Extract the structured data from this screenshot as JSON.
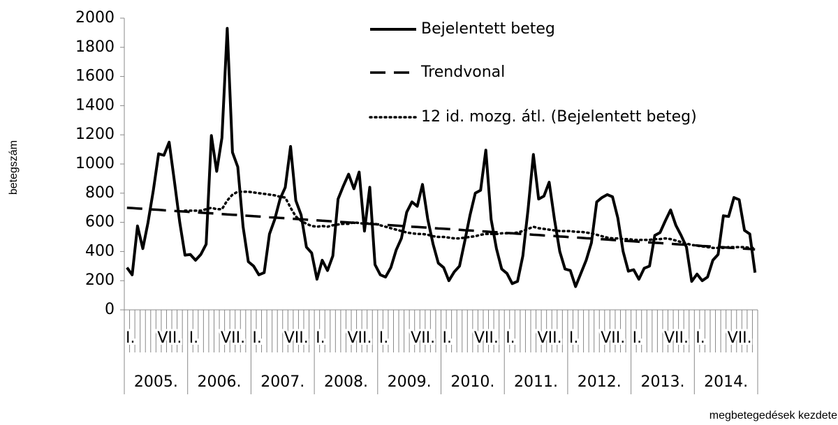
{
  "chart_data": {
    "type": "line",
    "y_label": "betegszám",
    "x_label": "megbetegedések kezdete",
    "categories": [
      "I.",
      null,
      null,
      null,
      null,
      null,
      "VII.",
      null,
      null,
      null,
      null,
      null,
      "I.",
      null,
      null,
      null,
      null,
      null,
      "VII.",
      null,
      null,
      null,
      null,
      null,
      "I.",
      null,
      null,
      null,
      null,
      null,
      "VII.",
      null,
      null,
      null,
      null,
      null,
      "I.",
      null,
      null,
      null,
      null,
      null,
      "VII.",
      null,
      null,
      null,
      null,
      null,
      "I.",
      null,
      null,
      null,
      null,
      null,
      "VII.",
      null,
      null,
      null,
      null,
      null,
      "I.",
      null,
      null,
      null,
      null,
      null,
      "VII.",
      null,
      null,
      null,
      null,
      null,
      "I.",
      null,
      null,
      null,
      null,
      null,
      "VII.",
      null,
      null,
      null,
      null,
      null,
      "I.",
      null,
      null,
      null,
      null,
      null,
      "VII.",
      null,
      null,
      null,
      null,
      null,
      "I.",
      null,
      null,
      null,
      null,
      null,
      "VII.",
      null,
      null,
      null,
      null,
      null,
      "I.",
      null,
      null,
      null,
      null,
      null,
      "VII.",
      null,
      null,
      null,
      null,
      null
    ],
    "years": [
      "2005.",
      "2006.",
      "2007.",
      "2008.",
      "2009.",
      "2010.",
      "2011.",
      "2012.",
      "2013.",
      "2014."
    ],
    "ylim": [
      0,
      2000
    ],
    "yticks": [
      0,
      200,
      400,
      600,
      800,
      1000,
      1200,
      1400,
      1600,
      1800,
      2000
    ],
    "series": [
      {
        "name": "Bejelentett beteg",
        "color": "#000000",
        "style": "solid",
        "values": [
          290,
          240,
          575,
          420,
          600,
          820,
          1070,
          1060,
          1150,
          880,
          600,
          375,
          380,
          340,
          380,
          450,
          1195,
          950,
          1180,
          1930,
          1080,
          980,
          570,
          330,
          300,
          240,
          255,
          520,
          620,
          760,
          840,
          1120,
          750,
          650,
          430,
          390,
          210,
          340,
          270,
          370,
          760,
          850,
          930,
          830,
          945,
          540,
          840,
          310,
          240,
          225,
          290,
          410,
          490,
          670,
          740,
          710,
          860,
          620,
          450,
          320,
          290,
          200,
          260,
          300,
          470,
          650,
          800,
          820,
          1095,
          620,
          420,
          280,
          250,
          180,
          195,
          370,
          690,
          1065,
          760,
          780,
          875,
          620,
          400,
          280,
          270,
          160,
          250,
          340,
          460,
          740,
          770,
          790,
          775,
          630,
          400,
          265,
          275,
          210,
          285,
          300,
          510,
          530,
          610,
          685,
          580,
          510,
          430,
          195,
          245,
          200,
          225,
          340,
          380,
          645,
          640,
          770,
          755,
          545,
          520,
          255
        ]
      },
      {
        "name": "Trendvonal",
        "color": "#000000",
        "style": "dashed",
        "values": [
          700,
          698,
          695,
          693,
          690,
          688,
          686,
          683,
          681,
          678,
          676,
          674,
          671,
          669,
          666,
          664,
          662,
          659,
          657,
          654,
          652,
          650,
          647,
          645,
          642,
          640,
          638,
          635,
          633,
          630,
          628,
          626,
          623,
          621,
          618,
          616,
          614,
          611,
          609,
          606,
          604,
          602,
          599,
          597,
          594,
          592,
          590,
          587,
          585,
          582,
          580,
          578,
          575,
          573,
          570,
          568,
          566,
          563,
          561,
          558,
          556,
          554,
          551,
          549,
          546,
          544,
          542,
          539,
          537,
          534,
          532,
          530,
          527,
          525,
          522,
          520,
          518,
          515,
          513,
          510,
          508,
          506,
          503,
          501,
          498,
          496,
          494,
          491,
          489,
          486,
          484,
          482,
          479,
          477,
          474,
          472,
          470,
          467,
          465,
          462,
          460,
          458,
          455,
          453,
          450,
          448,
          446,
          443,
          441,
          438,
          436,
          434,
          431,
          429,
          426,
          424,
          422,
          419,
          417,
          414
        ]
      },
      {
        "name": "12 id. mozg. átl. (Bejelentett beteg)",
        "color": "#000000",
        "style": "dotted",
        "values": [
          null,
          null,
          null,
          null,
          null,
          null,
          null,
          null,
          null,
          null,
          null,
          680,
          680,
          680,
          680,
          690,
          700,
          690,
          690,
          750,
          790,
          810,
          810,
          810,
          805,
          800,
          795,
          790,
          785,
          775,
          770,
          700,
          640,
          610,
          590,
          575,
          570,
          575,
          570,
          580,
          585,
          590,
          590,
          600,
          595,
          590,
          595,
          590,
          580,
          570,
          560,
          550,
          540,
          530,
          525,
          520,
          520,
          515,
          505,
          500,
          500,
          495,
          490,
          490,
          495,
          500,
          505,
          515,
          520,
          520,
          520,
          525,
          525,
          525,
          530,
          540,
          555,
          570,
          560,
          555,
          550,
          545,
          540,
          540,
          540,
          535,
          535,
          530,
          525,
          515,
          505,
          495,
          490,
          490,
          485,
          485,
          480,
          480,
          480,
          480,
          485,
          485,
          490,
          485,
          475,
          465,
          455,
          445,
          440,
          435,
          430,
          425,
          425,
          425,
          430,
          430,
          430,
          430,
          425,
          425
        ]
      }
    ]
  }
}
